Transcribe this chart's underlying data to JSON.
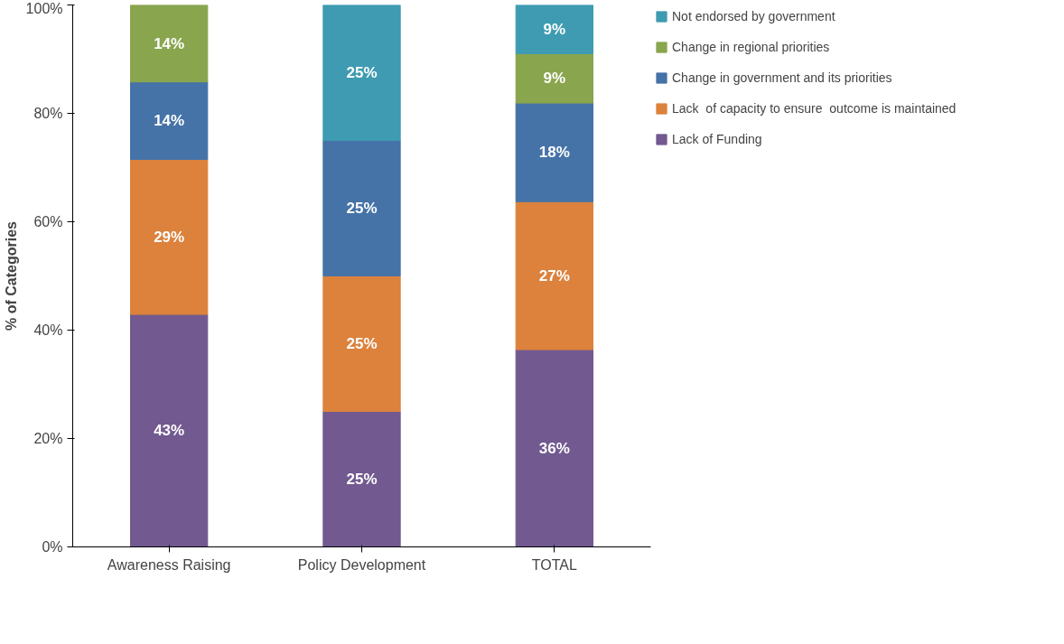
{
  "chart_data": {
    "type": "bar",
    "stacked": true,
    "ylabel": "% of Categories",
    "categories": [
      "Awareness Raising",
      "Policy Development",
      "TOTAL"
    ],
    "series": [
      {
        "name": "Lack of Funding",
        "color": "#725990",
        "values": [
          42.9,
          25,
          36.4
        ],
        "value_labels": [
          "43%",
          "25%",
          "36%"
        ]
      },
      {
        "name": "Lack  of capacity to ensure  outcome is maintained",
        "color": "#dc823c",
        "values": [
          28.6,
          25,
          27.3
        ],
        "value_labels": [
          "29%",
          "25%",
          "27%"
        ]
      },
      {
        "name": "Change in government and its priorities",
        "color": "#4573a7",
        "values": [
          14.3,
          25,
          18.2
        ],
        "value_labels": [
          "14%",
          "25%",
          "18%"
        ]
      },
      {
        "name": "Change in regional priorities",
        "color": "#89a54e",
        "values": [
          14.2,
          null,
          9.1
        ],
        "value_labels": [
          "14%",
          null,
          "9%"
        ]
      },
      {
        "name": "Not endorsed by government",
        "color": "#3f9bb1",
        "values": [
          null,
          25,
          9.0
        ],
        "value_labels": [
          null,
          "25%",
          "9%"
        ]
      }
    ],
    "ylim": [
      0,
      100
    ],
    "yticks": [
      {
        "value": 0,
        "label": "0%"
      },
      {
        "value": 20,
        "label": "20%"
      },
      {
        "value": 40,
        "label": "40%"
      },
      {
        "value": 60,
        "label": "60%"
      },
      {
        "value": 80,
        "label": "80%"
      },
      {
        "value": 100,
        "label": "100%"
      }
    ],
    "grid": false,
    "legend": "right"
  }
}
